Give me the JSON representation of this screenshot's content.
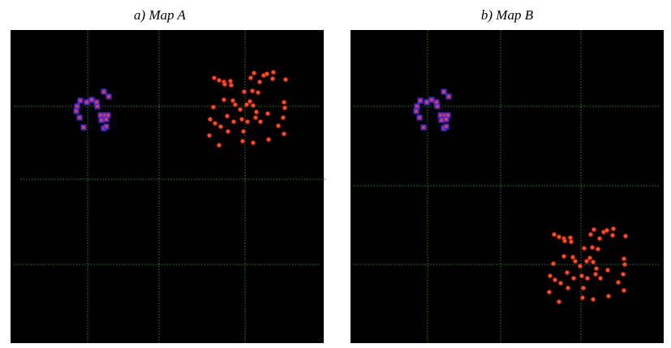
{
  "panels": [
    {
      "title": "a) Map A"
    },
    {
      "title": "b) Map B"
    }
  ]
}
